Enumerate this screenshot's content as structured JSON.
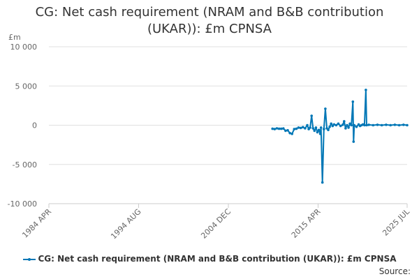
{
  "chart_data": {
    "type": "line",
    "title": "CG: Net cash requirement (NRAM and B&B contribution (UKAR)): £m CPNSA",
    "ylabel": "£m",
    "xlabel": "",
    "ylim": [
      -10000,
      10000
    ],
    "xlim": [
      "1984-04",
      "2025-07"
    ],
    "y_ticks": [
      {
        "value": 10000,
        "label": "10 000"
      },
      {
        "value": 5000,
        "label": "5 000"
      },
      {
        "value": 0,
        "label": "0"
      },
      {
        "value": -5000,
        "label": "-5 000"
      },
      {
        "value": -10000,
        "label": "-10 000"
      }
    ],
    "x_ticks": [
      {
        "date": "1984-04",
        "label": "1984 APR"
      },
      {
        "date": "1994-08",
        "label": "1994 AUG"
      },
      {
        "date": "2004-12",
        "label": "2004 DEC"
      },
      {
        "date": "2015-04",
        "label": "2015 APR"
      },
      {
        "date": "2025-07",
        "label": "2025 JUL"
      }
    ],
    "grid": "horizontal",
    "legend_position": "bottom",
    "series": [
      {
        "name": "CG: Net cash requirement (NRAM and B&B contribution (UKAR)): £m CPNSA",
        "color": "#0077b6",
        "points": [
          [
            "2010-01",
            -450
          ],
          [
            "2010-04",
            -500
          ],
          [
            "2010-07",
            -400
          ],
          [
            "2010-10",
            -450
          ],
          [
            "2011-01",
            -450
          ],
          [
            "2011-04",
            -420
          ],
          [
            "2011-07",
            -700
          ],
          [
            "2011-10",
            -650
          ],
          [
            "2012-01",
            -1000
          ],
          [
            "2012-04",
            -1100
          ],
          [
            "2012-07",
            -500
          ],
          [
            "2012-10",
            -450
          ],
          [
            "2013-01",
            -300
          ],
          [
            "2013-04",
            -350
          ],
          [
            "2013-07",
            -250
          ],
          [
            "2013-10",
            -400
          ],
          [
            "2014-01",
            0
          ],
          [
            "2014-03",
            -500
          ],
          [
            "2014-05",
            -300
          ],
          [
            "2014-07",
            1200
          ],
          [
            "2014-09",
            -400
          ],
          [
            "2014-11",
            -700
          ],
          [
            "2015-01",
            -300
          ],
          [
            "2015-03",
            -900
          ],
          [
            "2015-05",
            -600
          ],
          [
            "2015-07",
            -1100
          ],
          [
            "2015-08",
            -300
          ],
          [
            "2015-10",
            -7300
          ],
          [
            "2015-12",
            -500
          ],
          [
            "2016-02",
            2100
          ],
          [
            "2016-04",
            -400
          ],
          [
            "2016-06",
            -600
          ],
          [
            "2016-08",
            -200
          ],
          [
            "2016-10",
            200
          ],
          [
            "2016-12",
            -100
          ],
          [
            "2017-02",
            100
          ],
          [
            "2017-05",
            0
          ],
          [
            "2017-08",
            200
          ],
          [
            "2017-11",
            -100
          ],
          [
            "2018-02",
            50
          ],
          [
            "2018-04",
            500
          ],
          [
            "2018-06",
            -400
          ],
          [
            "2018-08",
            0
          ],
          [
            "2018-10",
            -300
          ],
          [
            "2018-12",
            200
          ],
          [
            "2019-02",
            0
          ],
          [
            "2019-04",
            3000
          ],
          [
            "2019-05",
            -2100
          ],
          [
            "2019-06",
            0
          ],
          [
            "2019-09",
            -200
          ],
          [
            "2019-12",
            100
          ],
          [
            "2020-02",
            -100
          ],
          [
            "2020-04",
            0
          ],
          [
            "2020-06",
            100
          ],
          [
            "2020-08",
            0
          ],
          [
            "2020-10",
            4500
          ],
          [
            "2020-11",
            0
          ],
          [
            "2021-02",
            50
          ],
          [
            "2021-08",
            0
          ],
          [
            "2022-02",
            50
          ],
          [
            "2022-08",
            0
          ],
          [
            "2023-02",
            50
          ],
          [
            "2023-08",
            0
          ],
          [
            "2024-02",
            50
          ],
          [
            "2024-08",
            0
          ],
          [
            "2025-02",
            50
          ],
          [
            "2025-07",
            0
          ]
        ]
      }
    ],
    "source_label": "Source:"
  }
}
